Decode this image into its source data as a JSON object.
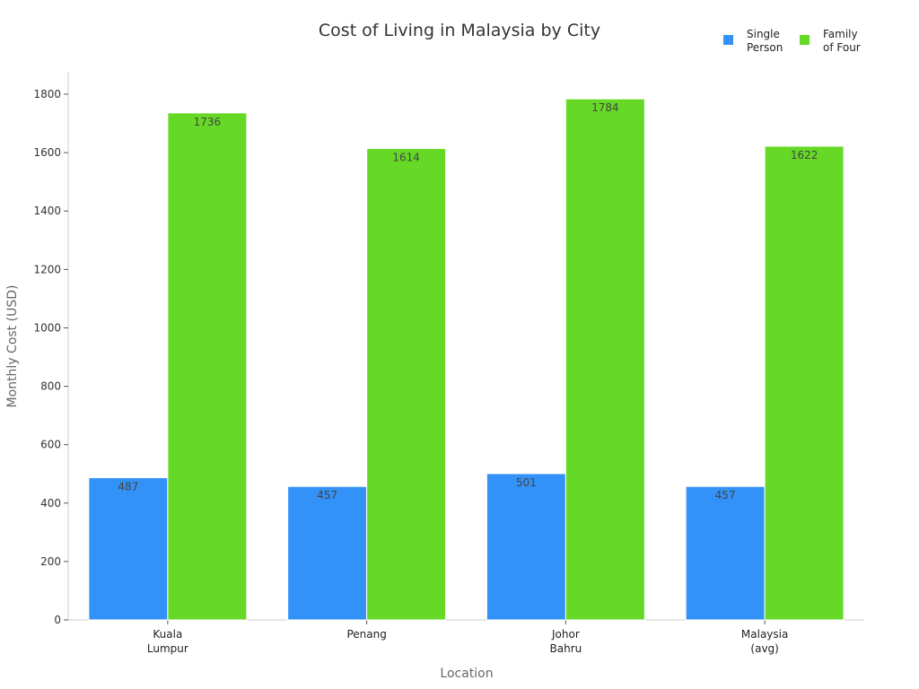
{
  "chart_data": {
    "type": "bar",
    "title": "Cost of Living in Malaysia by City",
    "xlabel": "Location",
    "ylabel": "Monthly Cost (USD)",
    "categories": [
      [
        "Kuala",
        "Lumpur"
      ],
      [
        "Penang"
      ],
      [
        "Johor",
        "Bahru"
      ],
      [
        "Malaysia",
        "(avg)"
      ]
    ],
    "series": [
      {
        "name": [
          "Single",
          "Person"
        ],
        "color": "#3392F7",
        "values": [
          487,
          457,
          501,
          457
        ]
      },
      {
        "name": [
          "Family",
          "of Four"
        ],
        "color": "#66D926",
        "values": [
          1736,
          1614,
          1784,
          1622
        ]
      }
    ],
    "ylim": [
      0,
      1880
    ],
    "yticks": [
      0,
      200,
      400,
      600,
      800,
      1000,
      1200,
      1400,
      1600,
      1800
    ],
    "grid": false,
    "legend": "top-right",
    "data_labels": true
  }
}
